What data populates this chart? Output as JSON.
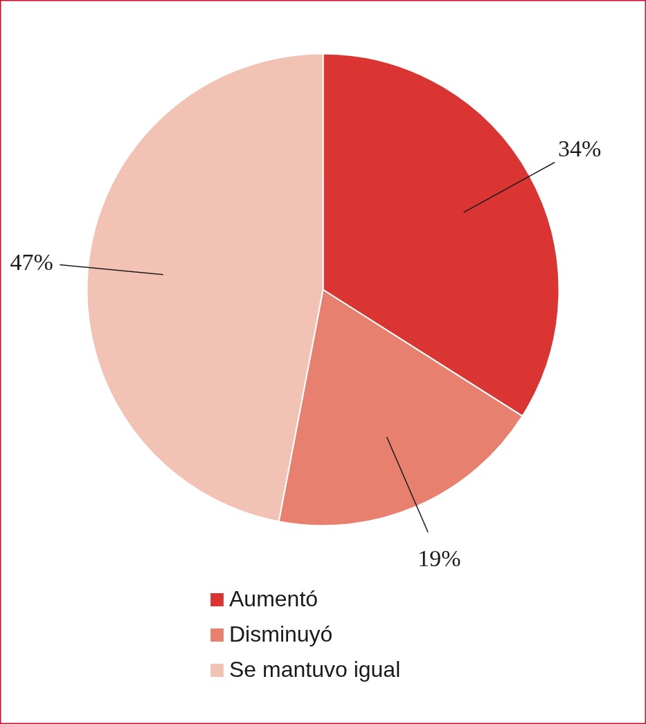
{
  "chart_data": {
    "type": "pie",
    "categories": [
      "Aumentó",
      "Disminuyó",
      "Se mantuvo igual"
    ],
    "values": [
      34,
      19,
      47
    ],
    "value_labels": [
      "34%",
      "19%",
      "47%"
    ],
    "colors": [
      "#db3533",
      "#e8806f",
      "#f2c3b4"
    ],
    "legend": "bottom"
  }
}
